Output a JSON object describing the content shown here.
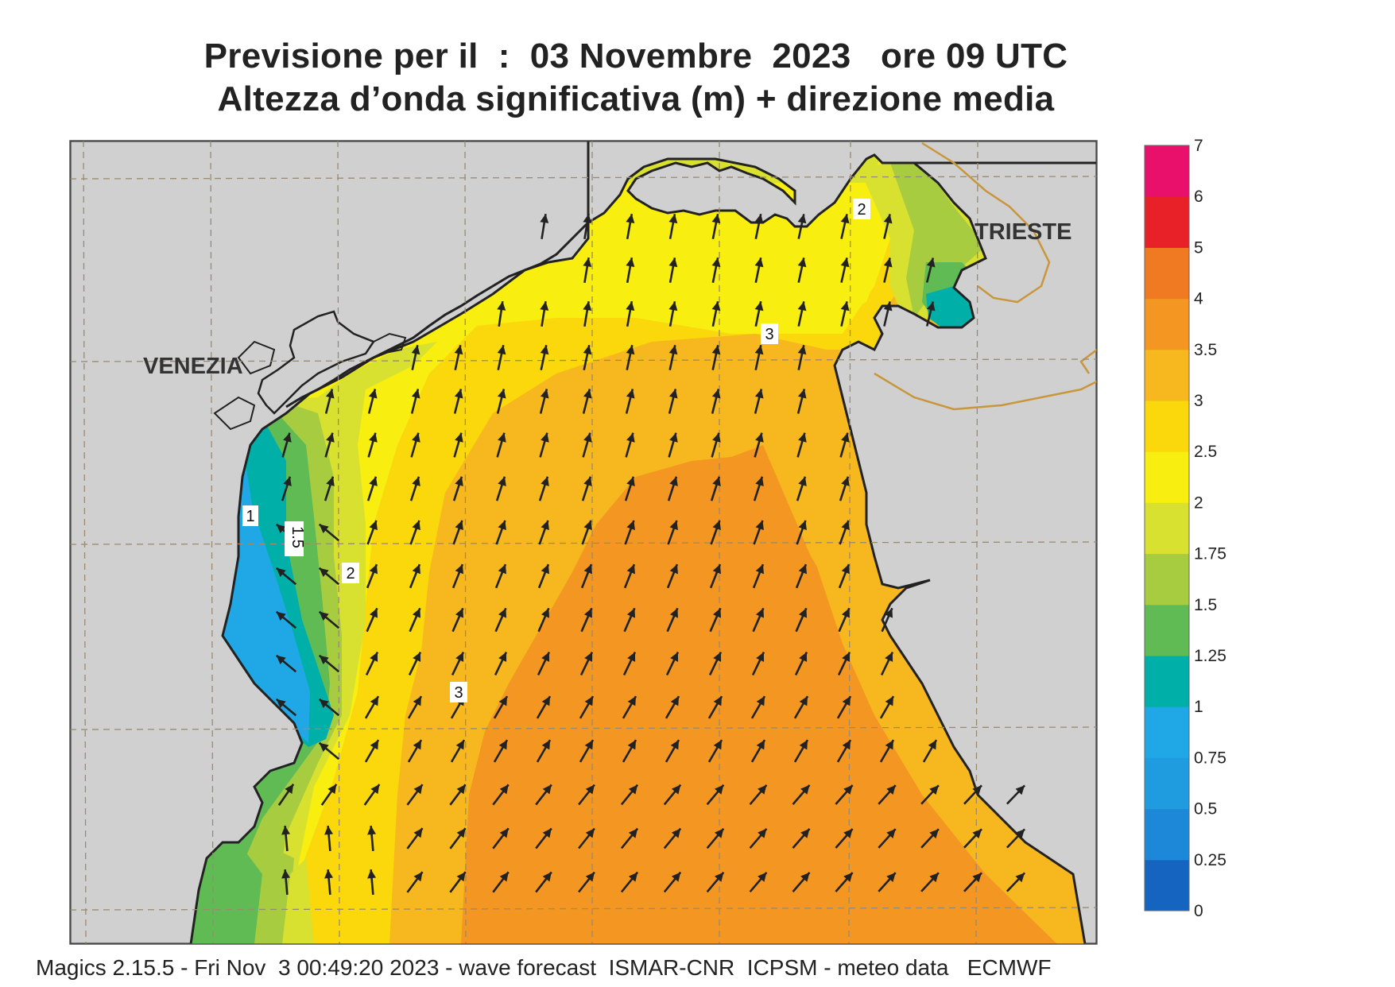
{
  "header": {
    "title_line1": "Previsione per il  :  03 Novembre  2023   ore 09 UTC",
    "title_line2": "Altezza d’onda significativa (m) + direzione media"
  },
  "map": {
    "cities": [
      "VENEZIA",
      "TRIESTE"
    ],
    "contour_labels": [
      "1",
      "1.5",
      "2",
      "3",
      "3",
      "2"
    ],
    "colors": {
      "land": "#d0d0d0",
      "coast": "#222222",
      "border": "#c8963c",
      "grid": "#9a8a70",
      "arrow": "#222222"
    }
  },
  "colorbar": {
    "levels": [
      "0",
      "0.25",
      "0.5",
      "0.75",
      "1",
      "1.25",
      "1.5",
      "1.75",
      "2",
      "2.5",
      "3",
      "3.5",
      "4",
      "5",
      "6",
      "7"
    ],
    "colors": [
      "#1565c0",
      "#1e88d8",
      "#1f9be0",
      "#20a8e6",
      "#00b0a8",
      "#60bb55",
      "#a8cc40",
      "#d8e030",
      "#f8ee10",
      "#fad80c",
      "#f6b81e",
      "#f39722",
      "#f07a22",
      "#e82028",
      "#e8106a"
    ]
  },
  "footer": {
    "text": "Magics 2.15.5 - Fri Nov  3 00:49:20 2023 - wave forecast  ISMAR-CNR  ICPSM - meteo data   ECMWF"
  }
}
